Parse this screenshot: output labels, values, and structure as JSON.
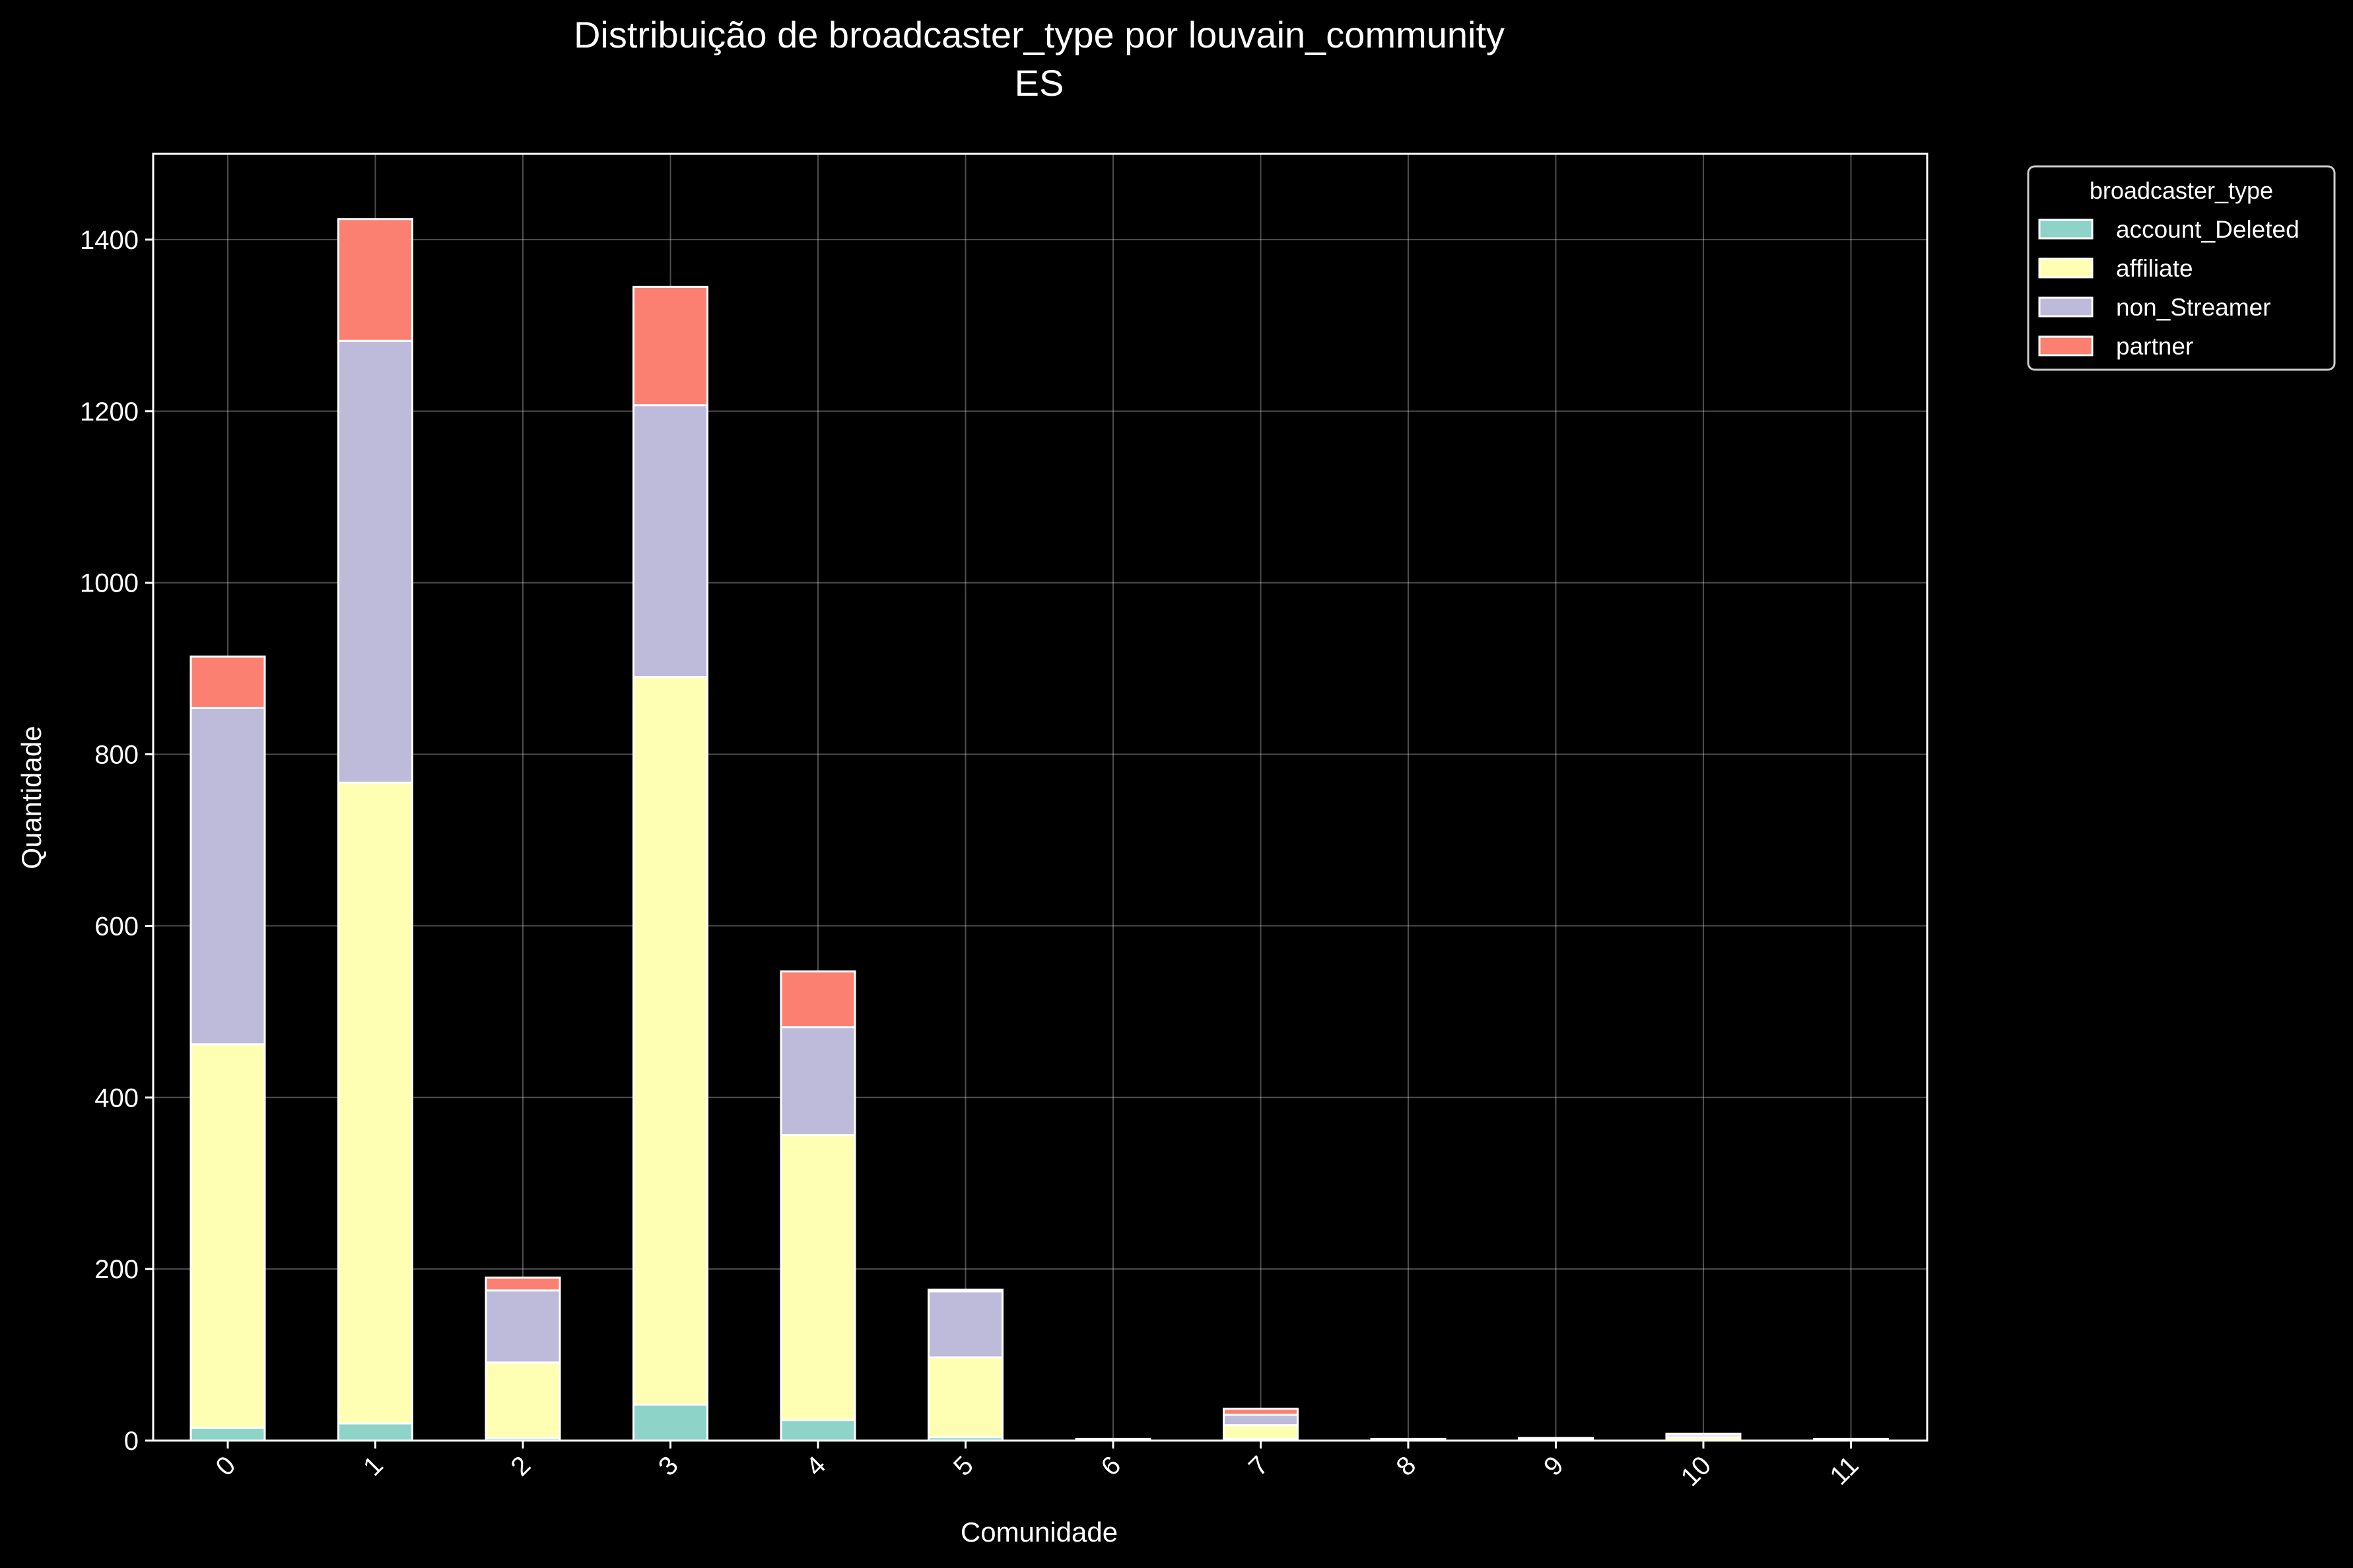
{
  "chart_data": {
    "type": "bar",
    "stacked": true,
    "title": "Distribuição de broadcaster_type por louvain_community",
    "subtitle": "ES",
    "xlabel": "Comunidade",
    "ylabel": "Quantidade",
    "ylim": [
      0,
      1500
    ],
    "yticks": [
      0,
      200,
      400,
      600,
      800,
      1000,
      1200,
      1400
    ],
    "grid": true,
    "legend_title": "broadcaster_type",
    "legend_position": "outside top-right",
    "categories": [
      "0",
      "1",
      "2",
      "3",
      "4",
      "5",
      "6",
      "7",
      "8",
      "9",
      "10",
      "11"
    ],
    "series": [
      {
        "name": "account_Deleted",
        "color": "#8dd3c7",
        "values": [
          15,
          20,
          3,
          42,
          24,
          4,
          0,
          2,
          0,
          0,
          0,
          0
        ]
      },
      {
        "name": "affiliate",
        "color": "#ffffb3",
        "values": [
          447,
          747,
          88,
          848,
          332,
          93,
          1,
          16,
          1,
          2,
          4,
          1
        ]
      },
      {
        "name": "non_Streamer",
        "color": "#bebada",
        "values": [
          392,
          515,
          84,
          317,
          126,
          77,
          1,
          12,
          1,
          1,
          3,
          1
        ]
      },
      {
        "name": "partner",
        "color": "#fb8072",
        "values": [
          60,
          142,
          15,
          138,
          65,
          2,
          0,
          7,
          0,
          0,
          1,
          0
        ]
      }
    ]
  }
}
